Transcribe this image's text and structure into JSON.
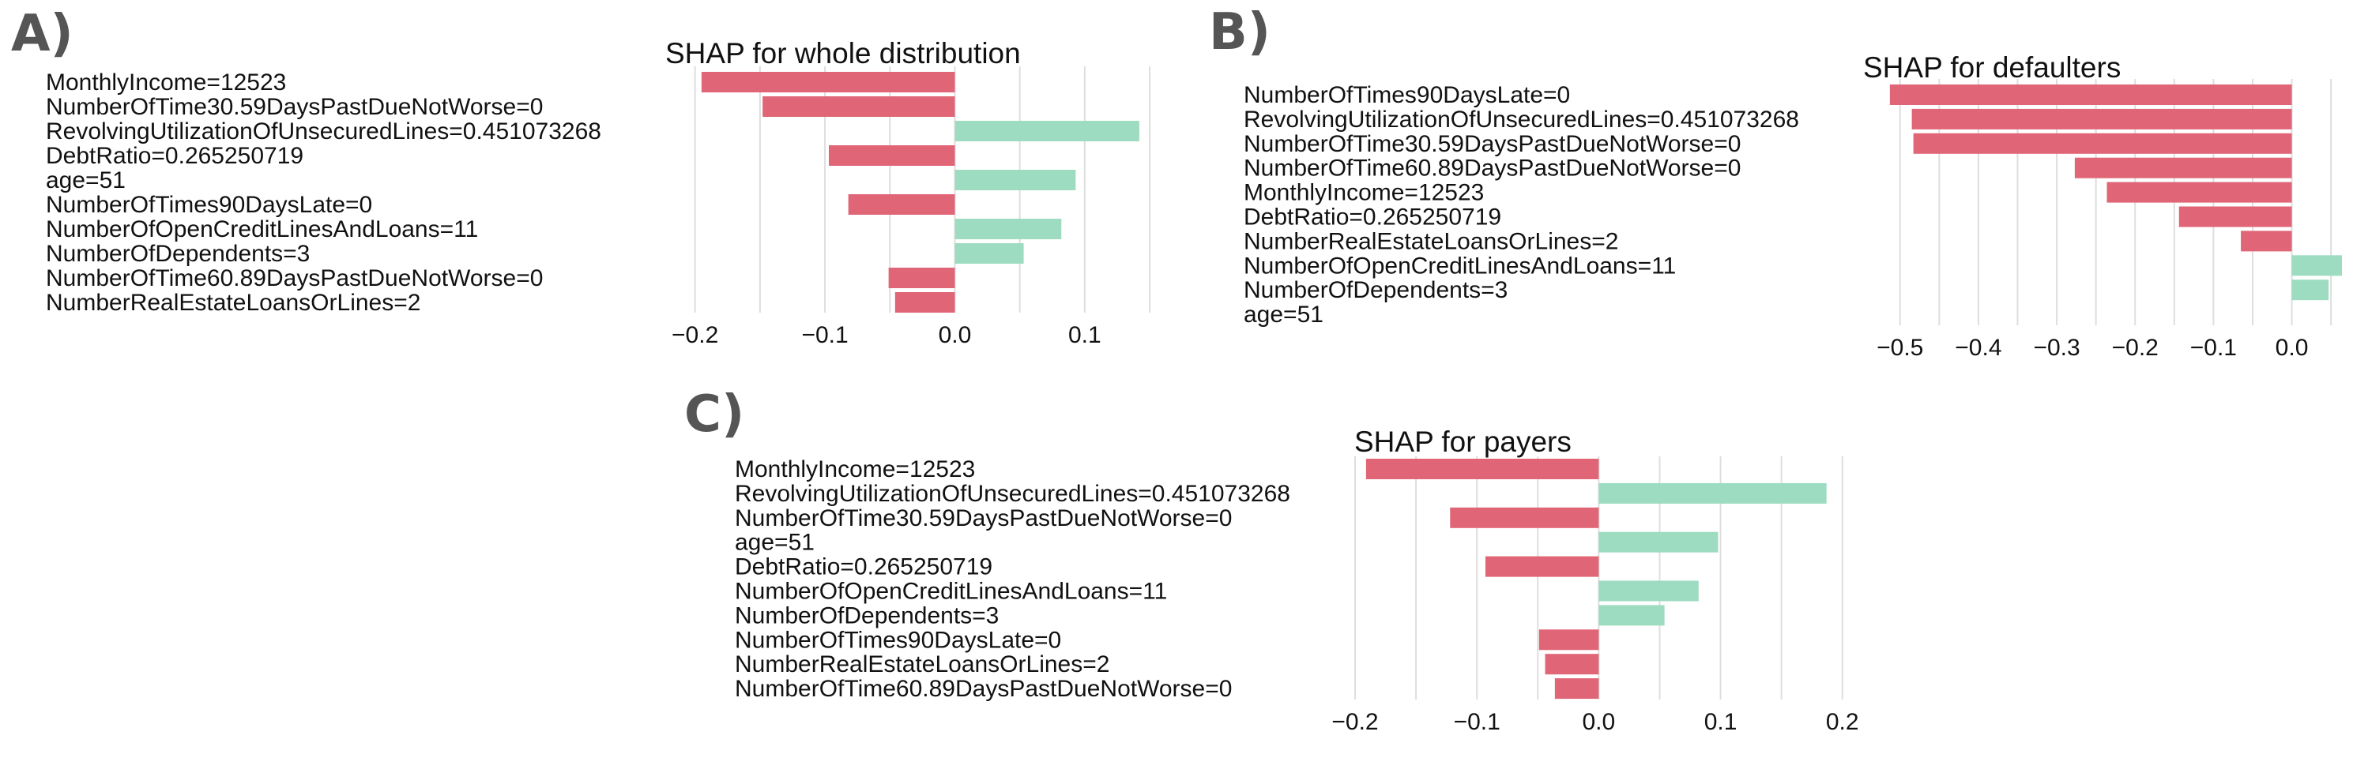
{
  "chart_data": [
    {
      "panel": "A)",
      "type": "bar",
      "orientation": "horizontal",
      "title": "SHAP for whole distribution",
      "categories": [
        "MonthlyIncome=12523",
        "NumberOfTime30.59DaysPastDueNotWorse=0",
        "RevolvingUtilizationOfUnsecuredLines=0.451073268",
        "DebtRatio=0.265250719",
        "age=51",
        "NumberOfTimes90DaysLate=0",
        "NumberOfOpenCreditLinesAndLoans=11",
        "NumberOfDependents=3",
        "NumberOfTime60.89DaysPastDueNotWorse=0",
        "NumberRealEstateLoansOrLines=2"
      ],
      "values": [
        -0.195,
        -0.148,
        0.142,
        -0.097,
        0.093,
        -0.082,
        0.082,
        0.053,
        -0.051,
        -0.046
      ],
      "xlim": [
        -0.215,
        0.153
      ],
      "ticks": [
        -0.2,
        -0.1,
        0.0,
        0.1
      ],
      "tick_labels": [
        "−0.2",
        "−0.1",
        "0.0",
        "0.1"
      ],
      "grid": true
    },
    {
      "panel": "B)",
      "type": "bar",
      "orientation": "horizontal",
      "title": "SHAP for defaulters",
      "categories": [
        "NumberOfTimes90DaysLate=0",
        "RevolvingUtilizationOfUnsecuredLines=0.451073268",
        "NumberOfTime30.59DaysPastDueNotWorse=0",
        "NumberOfTime60.89DaysPastDueNotWorse=0",
        "MonthlyIncome=12523",
        "DebtRatio=0.265250719",
        "NumberRealEstateLoansOrLines=2",
        "NumberOfOpenCreditLinesAndLoans=11",
        "NumberOfDependents=3",
        "age=51"
      ],
      "values": [
        -0.513,
        -0.485,
        -0.483,
        -0.277,
        -0.236,
        -0.144,
        -0.065,
        0.064,
        0.047,
        0.0
      ],
      "xlim": [
        -0.53,
        0.065
      ],
      "ticks": [
        -0.5,
        -0.4,
        -0.3,
        -0.2,
        -0.1,
        0.0
      ],
      "tick_labels": [
        "−0.5",
        "−0.4",
        "−0.3",
        "−0.2",
        "−0.1",
        "0.0"
      ],
      "grid": true
    },
    {
      "panel": "C)",
      "type": "bar",
      "orientation": "horizontal",
      "title": "SHAP for payers",
      "categories": [
        "MonthlyIncome=12523",
        "RevolvingUtilizationOfUnsecuredLines=0.451073268",
        "NumberOfTime30.59DaysPastDueNotWorse=0",
        "age=51",
        "DebtRatio=0.265250719",
        "NumberOfOpenCreditLinesAndLoans=11",
        "NumberOfDependents=3",
        "NumberOfTimes90DaysLate=0",
        "NumberRealEstateLoansOrLines=2",
        "NumberOfTime60.89DaysPastDueNotWorse=0"
      ],
      "values": [
        -0.191,
        0.187,
        -0.122,
        0.098,
        -0.093,
        0.082,
        0.054,
        -0.049,
        -0.044,
        -0.036
      ],
      "xlim": [
        -0.2,
        0.23
      ],
      "ticks": [
        -0.2,
        -0.1,
        0.0,
        0.1,
        0.2
      ],
      "tick_labels": [
        "−0.2",
        "−0.1",
        "0.0",
        "0.1",
        "0.2"
      ],
      "grid": true
    }
  ],
  "colors": {
    "negative": "#e06576",
    "positive": "#9ddcc1",
    "grid": "#dedede",
    "panel_letter": "#555555"
  }
}
